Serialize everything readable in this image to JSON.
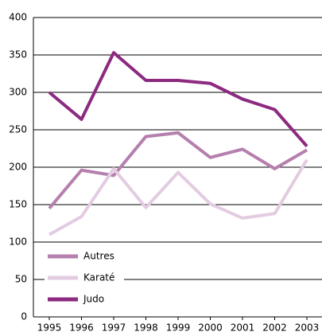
{
  "chart_data": {
    "type": "line",
    "categories": [
      "1995",
      "1996",
      "1997",
      "1998",
      "1999",
      "2000",
      "2001",
      "2002",
      "2003"
    ],
    "series": [
      {
        "name": "Autres",
        "color": "#b57fae",
        "values": [
          145,
          196,
          189,
          241,
          246,
          213,
          224,
          198,
          223
        ]
      },
      {
        "name": "Karaté",
        "color": "#e3cce1",
        "values": [
          110,
          134,
          198,
          146,
          193,
          151,
          132,
          138,
          210
        ]
      },
      {
        "name": "Judo",
        "color": "#8c2a80",
        "values": [
          300,
          264,
          353,
          316,
          316,
          312,
          291,
          277,
          228
        ]
      }
    ],
    "ylim": [
      0,
      400
    ],
    "yticks": [
      0,
      50,
      100,
      150,
      200,
      250,
      300,
      350,
      400
    ],
    "grid": true,
    "legend": "lower left"
  }
}
